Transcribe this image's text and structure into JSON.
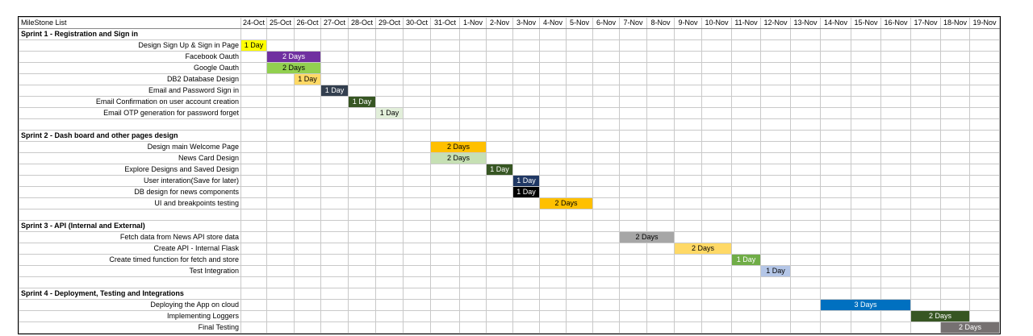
{
  "title": "MileStone List",
  "dates": [
    "24-Oct",
    "25-Oct",
    "26-Oct",
    "27-Oct",
    "28-Oct",
    "29-Oct",
    "30-Oct",
    "31-Oct",
    "1-Nov",
    "2-Nov",
    "3-Nov",
    "4-Nov",
    "5-Nov",
    "6-Nov",
    "7-Nov",
    "8-Nov",
    "9-Nov",
    "10-Nov",
    "11-Nov",
    "12-Nov",
    "13-Nov",
    "14-Nov",
    "15-Nov",
    "16-Nov",
    "17-Nov",
    "18-Nov",
    "19-Nov"
  ],
  "rows": [
    {
      "kind": "sprint",
      "label": "Sprint 1 - Registration and Sign in"
    },
    {
      "kind": "task",
      "label": "Design Sign Up & Sign in Page",
      "start": 0,
      "span": 1,
      "duration": "1 Day",
      "color": "#ffff00",
      "text_color": "#000000"
    },
    {
      "kind": "task",
      "label": "Facebook Oauth",
      "start": 1,
      "span": 2,
      "duration": "2 Days",
      "color": "#7030a0",
      "text_color": "#ffffff"
    },
    {
      "kind": "task",
      "label": "Google Oauth",
      "start": 1,
      "span": 2,
      "duration": "2 Days",
      "color": "#92d050",
      "text_color": "#000000"
    },
    {
      "kind": "task",
      "label": "DB2 Database Design",
      "start": 2,
      "span": 1,
      "duration": "1 Day",
      "color": "#ffd966",
      "text_color": "#000000"
    },
    {
      "kind": "task",
      "label": "Email and Password Sign in",
      "start": 3,
      "span": 1,
      "duration": "1 Day",
      "color": "#333f4f",
      "text_color": "#ffffff"
    },
    {
      "kind": "task",
      "label": "Email Confirmation on user account creation",
      "start": 4,
      "span": 1,
      "duration": "1 Day",
      "color": "#375623",
      "text_color": "#ffffff"
    },
    {
      "kind": "task",
      "label": "Email OTP generation for password forget",
      "start": 5,
      "span": 1,
      "duration": "1 Day",
      "color": "#e2efda",
      "text_color": "#000000"
    },
    {
      "kind": "blank"
    },
    {
      "kind": "sprint",
      "label": "Sprint 2 - Dash board and other pages design"
    },
    {
      "kind": "task",
      "label": "Design main Welcome Page",
      "start": 7,
      "span": 2,
      "duration": "2 Days",
      "color": "#ffc000",
      "text_color": "#000000"
    },
    {
      "kind": "task",
      "label": "News Card Design",
      "start": 7,
      "span": 2,
      "duration": "2 Days",
      "color": "#c6e0b4",
      "text_color": "#000000"
    },
    {
      "kind": "task",
      "label": "Explore Designs and Saved Design",
      "start": 9,
      "span": 1,
      "duration": "1 Day",
      "color": "#375623",
      "text_color": "#ffffff"
    },
    {
      "kind": "task",
      "label": "User interation(Save for later)",
      "start": 10,
      "span": 1,
      "duration": "1 Day",
      "color": "#203864",
      "text_color": "#ffffff"
    },
    {
      "kind": "task",
      "label": "DB design for news components",
      "start": 10,
      "span": 1,
      "duration": "1 Day",
      "color": "#000000",
      "text_color": "#ffffff"
    },
    {
      "kind": "task",
      "label": "UI and breakpoints testing",
      "start": 11,
      "span": 2,
      "duration": "2 Days",
      "color": "#ffc000",
      "text_color": "#000000"
    },
    {
      "kind": "blank"
    },
    {
      "kind": "sprint",
      "label": "Sprint 3 - API (Internal and External)"
    },
    {
      "kind": "task",
      "label": "Fetch data from News API store data",
      "start": 14,
      "span": 2,
      "duration": "2 Days",
      "color": "#a6a6a6",
      "text_color": "#000000"
    },
    {
      "kind": "task",
      "label": "Create API - Internal Flask",
      "start": 16,
      "span": 2,
      "duration": "2 Days",
      "color": "#ffd966",
      "text_color": "#000000"
    },
    {
      "kind": "task",
      "label": "Create timed function for fetch and store",
      "start": 18,
      "span": 1,
      "duration": "1 Day",
      "color": "#70ad47",
      "text_color": "#ffffff"
    },
    {
      "kind": "task",
      "label": "Test Integration",
      "start": 19,
      "span": 1,
      "duration": "1 Day",
      "color": "#b4c6e7",
      "text_color": "#000000"
    },
    {
      "kind": "blank"
    },
    {
      "kind": "sprint",
      "label": "Sprint 4 - Deployment, Testing and Integrations"
    },
    {
      "kind": "task",
      "label": "Deploying the App on cloud",
      "start": 21,
      "span": 3,
      "duration": "3 Days",
      "color": "#0070c0",
      "text_color": "#ffffff"
    },
    {
      "kind": "task",
      "label": "Implementing Loggers",
      "start": 24,
      "span": 2,
      "duration": "2 Days",
      "color": "#375623",
      "text_color": "#ffffff"
    },
    {
      "kind": "task",
      "label": "Final Testing",
      "start": 25,
      "span": 2,
      "duration": "2 Days",
      "color": "#767171",
      "text_color": "#ffffff"
    }
  ]
}
